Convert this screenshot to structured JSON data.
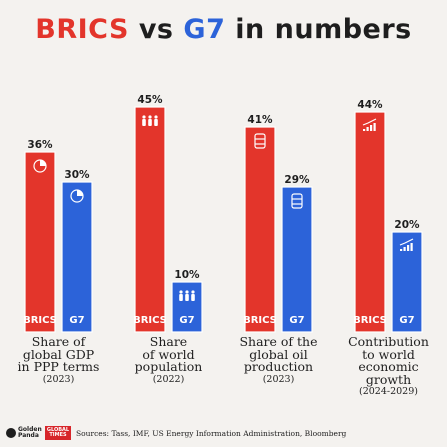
{
  "title": {
    "part1": "BRICS",
    "part2": " vs ",
    "part3": "G7",
    "part4": " in numbers"
  },
  "colors": {
    "brics": "#e3352b",
    "g7": "#2c63d9",
    "outline": "#ffffff"
  },
  "chart_data": {
    "type": "bar",
    "title": "BRICS vs G7 in numbers",
    "series": [
      {
        "name": "BRICS",
        "color": "#e3352b"
      },
      {
        "name": "G7",
        "color": "#2c63d9"
      }
    ],
    "groups": [
      {
        "caption": "Share of\nglobal GDP\nin PPP terms",
        "year": "(2023)",
        "icon": "pie-chart-icon",
        "brics": 36,
        "brics_label": "36%",
        "g7": 30,
        "g7_label": "30%"
      },
      {
        "caption": "Share\nof world\npopulation",
        "year": "(2022)",
        "icon": "people-icon",
        "brics": 45,
        "brics_label": "45%",
        "g7": 10,
        "g7_label": "10%"
      },
      {
        "caption": "Share of the\nglobal oil\nproduction",
        "year": "(2023)",
        "icon": "oil-barrel-icon",
        "brics": 41,
        "brics_label": "41%",
        "g7": 29,
        "g7_label": "29%"
      },
      {
        "caption": "Contribution\nto world\neconomic\ngrowth",
        "year": "(2024-2029)",
        "icon": "growth-chart-icon",
        "brics": 44,
        "brics_label": "44%",
        "g7": 20,
        "g7_label": "20%"
      }
    ],
    "group_tags": {
      "brics": "BRICS",
      "g7": "G7"
    }
  },
  "footer": {
    "logo1": "Golden\nPanda",
    "logo2": "GLOBAL\nTIMES",
    "sources": "Sources: Tass, IMF, US Energy Information Administration, Bloomberg"
  }
}
